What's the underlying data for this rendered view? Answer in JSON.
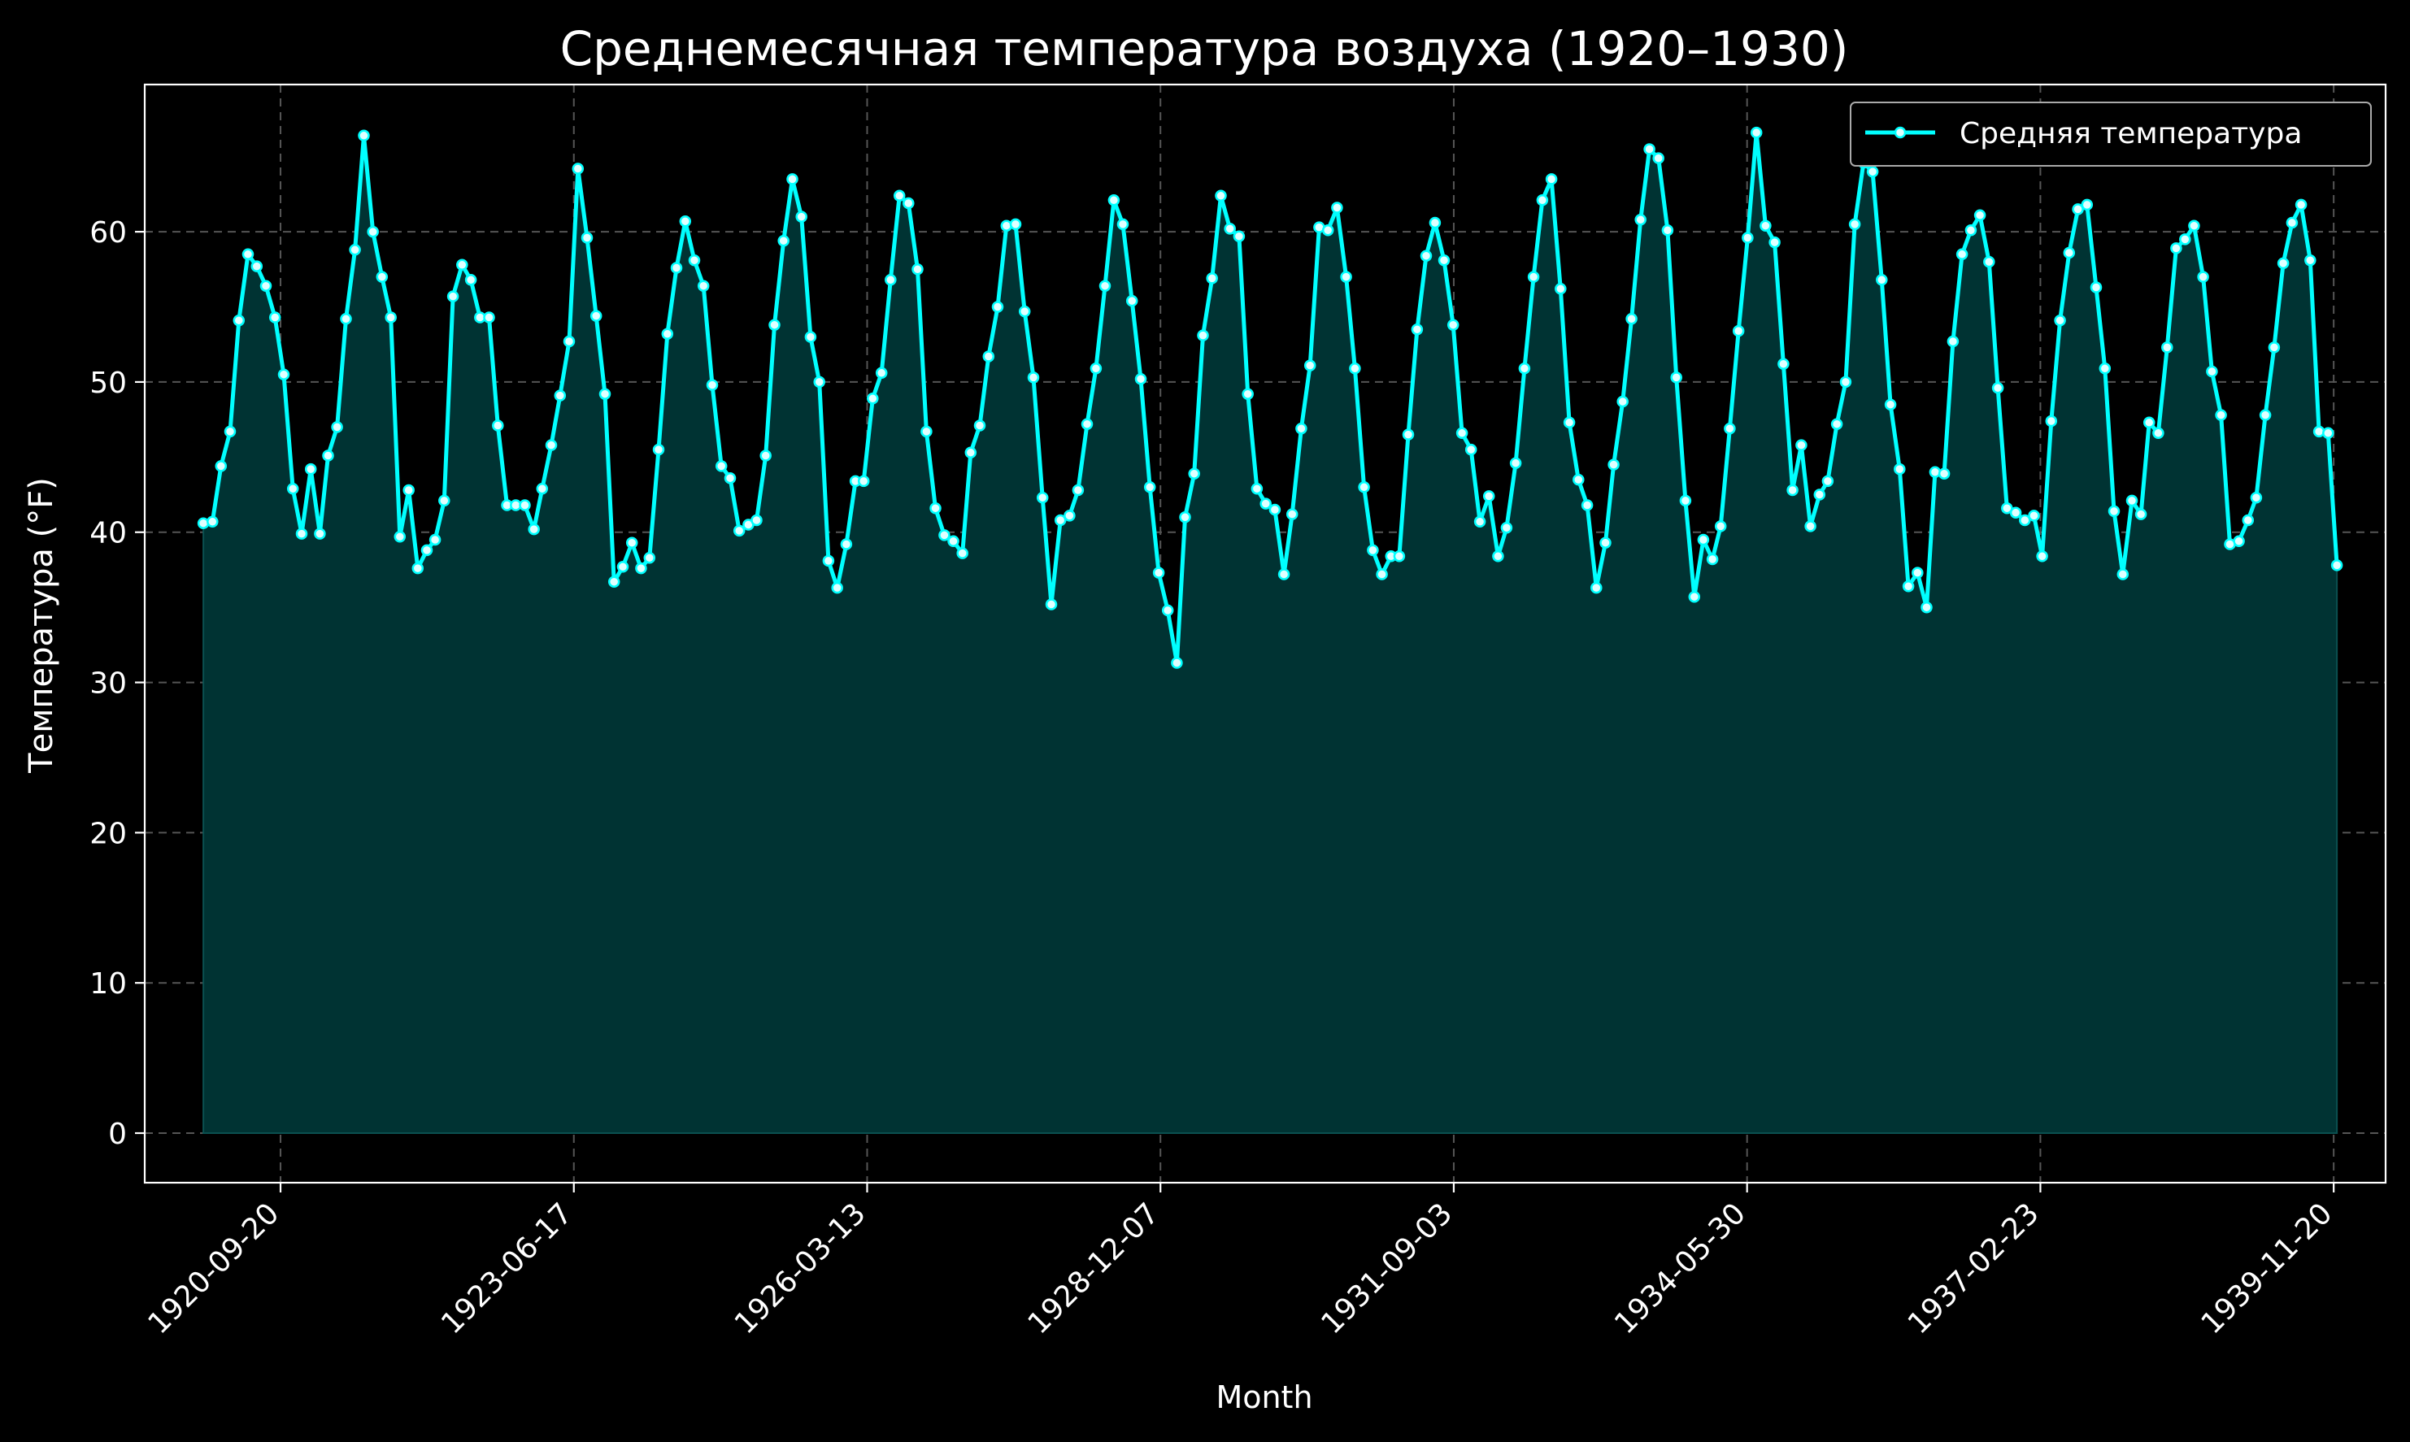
{
  "chart_data": {
    "type": "line",
    "title": "Среднемесячная температура воздуха (1920–1930)",
    "xlabel": "Month",
    "ylabel": "Температура (°F)",
    "x_tick_labels": [
      "1920-09-20",
      "1923-06-17",
      "1926-03-13",
      "1928-12-07",
      "1931-09-03",
      "1934-05-30",
      "1937-02-23",
      "1939-11-20"
    ],
    "y_ticks": [
      0,
      10,
      20,
      30,
      40,
      50,
      60
    ],
    "xlim": [
      "1919-06-15",
      "1940-05-15"
    ],
    "ylim": [
      -3.3,
      69.8
    ],
    "x_start": "1920-01",
    "x_frequency": "monthly",
    "grid": true,
    "legend_position": "top-right",
    "area_fill": true,
    "colors": {
      "line": "#00ffff",
      "marker_fill": "#e0ffff",
      "area": "#003333",
      "background": "#000000",
      "text": "#ffffff"
    },
    "series": [
      {
        "name": "Средняя температура",
        "values": [
          40.6,
          40.7,
          44.4,
          46.7,
          54.1,
          58.5,
          57.7,
          56.4,
          54.3,
          50.5,
          42.9,
          39.9,
          44.2,
          39.9,
          45.1,
          47.0,
          54.2,
          58.8,
          66.4,
          60.0,
          57.0,
          54.3,
          39.7,
          42.8,
          37.6,
          38.8,
          39.5,
          42.1,
          55.7,
          57.8,
          56.8,
          54.3,
          54.3,
          47.1,
          41.8,
          41.8,
          41.8,
          40.2,
          42.9,
          45.8,
          49.1,
          52.7,
          64.2,
          59.6,
          54.4,
          49.2,
          36.7,
          37.7,
          39.3,
          37.6,
          38.3,
          45.5,
          53.2,
          57.6,
          60.7,
          58.1,
          56.4,
          49.8,
          44.4,
          43.6,
          40.1,
          40.5,
          40.8,
          45.1,
          53.8,
          59.4,
          63.5,
          61.0,
          53.0,
          50.0,
          38.1,
          36.3,
          39.2,
          43.4,
          43.4,
          48.9,
          50.6,
          56.8,
          62.4,
          61.9,
          57.5,
          46.7,
          41.6,
          39.8,
          39.4,
          38.6,
          45.3,
          47.1,
          51.7,
          55.0,
          60.4,
          60.5,
          54.7,
          50.3,
          42.3,
          35.2,
          40.8,
          41.1,
          42.8,
          47.2,
          50.9,
          56.4,
          62.1,
          60.5,
          55.4,
          50.2,
          43.0,
          37.3,
          34.8,
          31.3,
          41.0,
          43.9,
          53.1,
          56.9,
          62.4,
          60.2,
          59.7,
          49.2,
          42.9,
          41.9,
          41.5,
          37.2,
          41.2,
          46.9,
          51.1,
          60.3,
          60.1,
          61.6,
          57.0,
          50.9,
          43.0,
          38.8,
          37.2,
          38.4,
          38.4,
          46.5,
          53.5,
          58.4,
          60.6,
          58.1,
          53.8,
          46.6,
          45.5,
          40.7,
          42.4,
          38.4,
          40.3,
          44.6,
          50.9,
          57.0,
          62.1,
          63.5,
          56.2,
          47.3,
          43.5,
          41.8,
          36.3,
          39.3,
          44.5,
          48.7,
          54.2,
          60.8,
          65.5,
          64.9,
          60.1,
          50.3,
          42.1,
          35.7,
          39.5,
          38.2,
          40.4,
          46.9,
          53.4,
          59.6,
          66.6,
          60.4,
          59.3,
          51.2,
          42.8,
          45.8,
          40.4,
          42.5,
          43.4,
          47.2,
          50.0,
          60.5,
          64.6,
          64.0,
          56.8,
          48.5,
          44.2,
          36.4,
          37.3,
          35.0,
          44.0,
          43.9,
          52.7,
          58.5,
          60.1,
          61.1,
          58.0,
          49.6,
          41.6,
          41.3,
          40.8,
          41.1,
          38.4,
          47.4,
          54.1,
          58.6,
          61.5,
          61.8,
          56.3,
          50.9,
          41.4,
          37.2,
          42.1,
          41.2,
          47.3,
          46.6,
          52.3,
          58.9,
          59.5,
          60.4,
          57.0,
          50.7,
          47.8,
          39.2,
          39.4,
          40.8,
          42.3,
          47.8,
          52.3,
          57.9,
          60.6,
          61.8,
          58.1,
          46.7,
          46.6,
          37.8
        ]
      }
    ]
  }
}
